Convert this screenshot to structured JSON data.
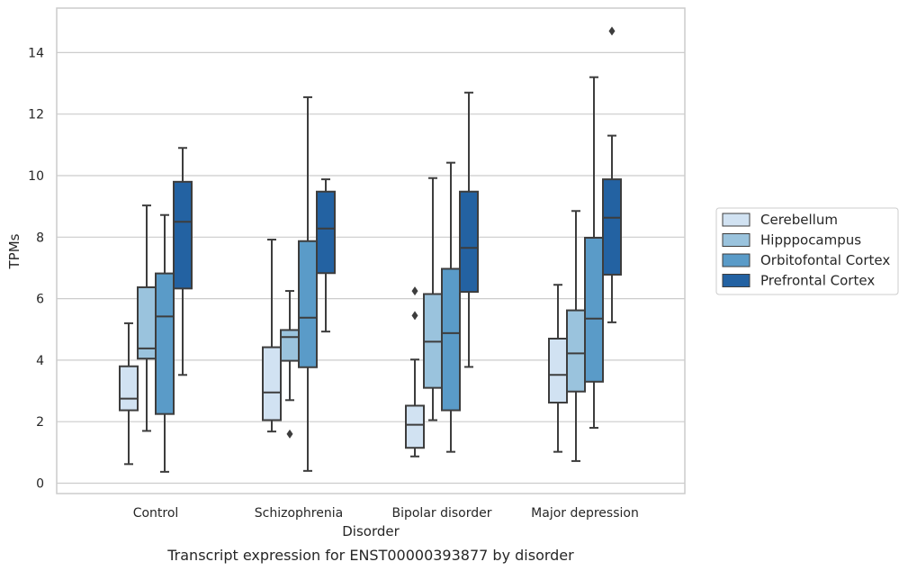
{
  "chart_data": {
    "type": "boxplot",
    "caption": "Transcript expression for ENST00000393877 by disorder",
    "xlabel": "Disorder",
    "ylabel": "TPMs",
    "ylim": [
      -0.3,
      15.4
    ],
    "yticks": [
      0,
      2,
      4,
      6,
      8,
      10,
      12,
      14
    ],
    "grid": true,
    "legend_position": "center-right",
    "categories": [
      "Control",
      "Schizophrenia",
      "Bipolar disorder",
      "Major depression"
    ],
    "series": [
      {
        "name": "Cerebellum",
        "color": "#d1e2f2",
        "boxes": [
          {
            "whislo": 0.62,
            "q1": 2.37,
            "med": 2.75,
            "q3": 3.8,
            "whishi": 5.2,
            "fliers": []
          },
          {
            "whislo": 1.68,
            "q1": 2.05,
            "med": 2.95,
            "q3": 4.42,
            "whishi": 7.92,
            "fliers": []
          },
          {
            "whislo": 0.87,
            "q1": 1.15,
            "med": 1.9,
            "q3": 2.52,
            "whishi": 4.02,
            "fliers": [
              5.45,
              6.25
            ]
          },
          {
            "whislo": 1.02,
            "q1": 2.62,
            "med": 3.52,
            "q3": 4.7,
            "whishi": 6.45,
            "fliers": []
          }
        ]
      },
      {
        "name": "Hipppocampus",
        "color": "#9ac3dd",
        "boxes": [
          {
            "whislo": 1.7,
            "q1": 4.05,
            "med": 4.38,
            "q3": 6.37,
            "whishi": 9.03,
            "fliers": []
          },
          {
            "whislo": 2.7,
            "q1": 3.98,
            "med": 4.75,
            "q3": 4.98,
            "whishi": 6.25,
            "fliers": [
              1.6
            ]
          },
          {
            "whislo": 2.05,
            "q1": 3.1,
            "med": 4.6,
            "q3": 6.15,
            "whishi": 9.92,
            "fliers": []
          },
          {
            "whislo": 0.72,
            "q1": 2.98,
            "med": 4.22,
            "q3": 5.62,
            "whishi": 8.85,
            "fliers": []
          }
        ]
      },
      {
        "name": "Orbitofontal Cortex",
        "color": "#5a9bc8",
        "boxes": [
          {
            "whislo": 0.37,
            "q1": 2.25,
            "med": 5.42,
            "q3": 6.82,
            "whishi": 8.72,
            "fliers": []
          },
          {
            "whislo": 0.4,
            "q1": 3.77,
            "med": 5.38,
            "q3": 7.87,
            "whishi": 12.55,
            "fliers": []
          },
          {
            "whislo": 1.02,
            "q1": 2.37,
            "med": 4.88,
            "q3": 6.97,
            "whishi": 10.42,
            "fliers": []
          },
          {
            "whislo": 1.8,
            "q1": 3.3,
            "med": 5.35,
            "q3": 7.98,
            "whishi": 13.2,
            "fliers": []
          }
        ]
      },
      {
        "name": "Prefrontal Cortex",
        "color": "#2362a2",
        "boxes": [
          {
            "whislo": 3.52,
            "q1": 6.33,
            "med": 8.5,
            "q3": 9.8,
            "whishi": 10.9,
            "fliers": []
          },
          {
            "whislo": 4.93,
            "q1": 6.83,
            "med": 8.28,
            "q3": 9.48,
            "whishi": 9.88,
            "fliers": []
          },
          {
            "whislo": 3.78,
            "q1": 6.22,
            "med": 7.65,
            "q3": 9.48,
            "whishi": 12.7,
            "fliers": []
          },
          {
            "whislo": 5.23,
            "q1": 6.78,
            "med": 8.63,
            "q3": 9.88,
            "whishi": 11.3,
            "fliers": [
              14.7
            ]
          }
        ]
      }
    ]
  }
}
